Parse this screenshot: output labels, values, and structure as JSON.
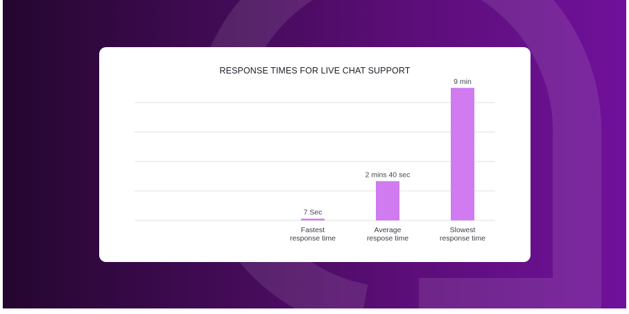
{
  "chart_data": {
    "type": "bar",
    "title": "RESPONSE TIMES FOR LIVE CHAT SUPPORT",
    "categories": [
      "Fastest response time",
      "Average respose time",
      "Slowest response time"
    ],
    "category_lines": [
      [
        "Fastest",
        "response time"
      ],
      [
        "Average",
        "respose time"
      ],
      [
        "Slowest",
        "response time"
      ]
    ],
    "values_seconds": [
      7,
      160,
      540
    ],
    "data_labels": [
      "7 Sec",
      "2 mins 40 sec",
      "9 min"
    ],
    "ylim": [
      0,
      480
    ],
    "gridline_count": 4,
    "xlabel": "",
    "ylabel": "",
    "bar_color": "#d07bef"
  },
  "colors": {
    "gradient_dark": "#24062f",
    "gradient_light": "#70119a",
    "gridline": "#e2e2e6"
  }
}
